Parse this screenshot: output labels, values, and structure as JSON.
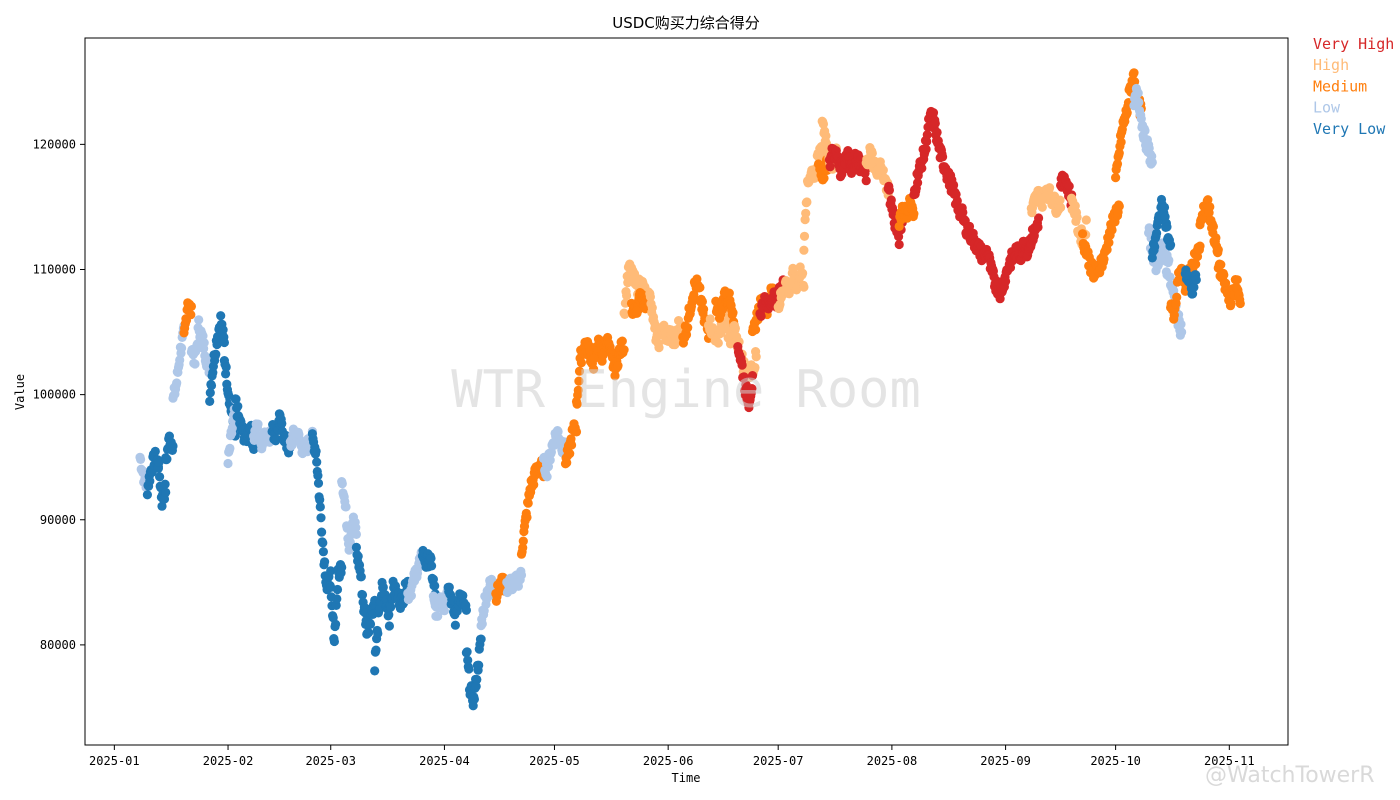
{
  "chart_data": {
    "type": "scatter",
    "title": "USDC购买力综合得分",
    "xlabel": "Time",
    "ylabel": "Value",
    "xlim": [
      "2024-12-24",
      "2025-11-17"
    ],
    "ylim": [
      72000,
      128500
    ],
    "x_ticks": [
      "2025-01",
      "2025-02",
      "2025-03",
      "2025-04",
      "2025-05",
      "2025-06",
      "2025-07",
      "2025-08",
      "2025-09",
      "2025-10",
      "2025-11"
    ],
    "y_ticks": [
      80000,
      90000,
      100000,
      110000,
      120000
    ],
    "legend_placement": "outside-right-top",
    "grid": false,
    "categories": [
      {
        "key": "very_high",
        "label": "Very High",
        "color": "#d62728"
      },
      {
        "key": "high",
        "label": "High",
        "color": "#ffbb78"
      },
      {
        "key": "medium",
        "label": "Medium",
        "color": "#ff7f0e"
      },
      {
        "key": "low",
        "label": "Low",
        "color": "#aec7e8"
      },
      {
        "key": "very_low",
        "label": "Very Low",
        "color": "#1f77b4"
      }
    ],
    "series": [
      {
        "start": "2025-01-08",
        "end": "2025-01-10",
        "category": "low",
        "values": [
          95000,
          93500,
          92500
        ]
      },
      {
        "start": "2025-01-10",
        "end": "2025-01-13",
        "category": "very_low",
        "values": [
          92500,
          94000,
          95000,
          94500
        ]
      },
      {
        "start": "2025-01-13",
        "end": "2025-01-15",
        "category": "very_low",
        "values": [
          94500,
          91500,
          92500
        ]
      },
      {
        "start": "2025-01-15",
        "end": "2025-01-17",
        "category": "very_low",
        "values": [
          94500,
          96500,
          96000
        ]
      },
      {
        "start": "2025-01-17",
        "end": "2025-01-20",
        "category": "low",
        "values": [
          99500,
          101000,
          103500,
          105000
        ]
      },
      {
        "start": "2025-01-20",
        "end": "2025-01-22",
        "category": "medium",
        "values": [
          104500,
          107500,
          106500
        ]
      },
      {
        "start": "2025-01-22",
        "end": "2025-01-27",
        "category": "low",
        "values": [
          104000,
          102500,
          105500,
          104500,
          103000,
          102000
        ]
      },
      {
        "start": "2025-01-27",
        "end": "2025-01-31",
        "category": "very_low",
        "values": [
          100000,
          102500,
          104500,
          106000,
          104000
        ]
      },
      {
        "start": "2025-01-31",
        "end": "2025-02-03",
        "category": "very_low",
        "values": [
          103000,
          100500,
          98500,
          96500
        ]
      },
      {
        "start": "2025-02-01",
        "end": "2025-02-03",
        "category": "low",
        "values": [
          94500,
          97000,
          99000
        ]
      },
      {
        "start": "2025-02-03",
        "end": "2025-02-08",
        "category": "very_low",
        "values": [
          99500,
          98000,
          97000,
          96500,
          97500,
          96000
        ]
      },
      {
        "start": "2025-02-08",
        "end": "2025-02-13",
        "category": "low",
        "values": [
          96500,
          97500,
          96000,
          97000,
          96500,
          97000
        ]
      },
      {
        "start": "2025-02-13",
        "end": "2025-02-18",
        "category": "very_low",
        "values": [
          97500,
          96500,
          98000,
          97000,
          96000,
          95500
        ]
      },
      {
        "start": "2025-02-18",
        "end": "2025-02-24",
        "category": "low",
        "values": [
          96000,
          97000,
          96500,
          95500,
          96000,
          96500
        ]
      },
      {
        "start": "2025-02-24",
        "end": "2025-03-01",
        "category": "very_low",
        "values": [
          96500,
          95500,
          91500,
          87500,
          84500,
          85500
        ]
      },
      {
        "start": "2025-03-01",
        "end": "2025-03-04",
        "category": "very_low",
        "values": [
          84000,
          80500,
          85500,
          86500
        ]
      },
      {
        "start": "2025-03-04",
        "end": "2025-03-08",
        "category": "low",
        "values": [
          93500,
          91000,
          88000,
          90000,
          89000
        ]
      },
      {
        "start": "2025-03-08",
        "end": "2025-03-13",
        "category": "very_low",
        "values": [
          87500,
          86000,
          83000,
          81000,
          82500,
          83500
        ]
      },
      {
        "start": "2025-03-13",
        "end": "2025-03-17",
        "category": "very_low",
        "values": [
          78500,
          82000,
          84500,
          83500,
          82000
        ]
      },
      {
        "start": "2025-03-17",
        "end": "2025-03-22",
        "category": "very_low",
        "values": [
          83000,
          84500,
          84000,
          83500,
          84000,
          85000
        ]
      },
      {
        "start": "2025-03-22",
        "end": "2025-03-26",
        "category": "low",
        "values": [
          84000,
          84500,
          85500,
          86500,
          87000
        ]
      },
      {
        "start": "2025-03-26",
        "end": "2025-03-30",
        "category": "very_low",
        "values": [
          87500,
          86500,
          87000,
          85000,
          83000
        ]
      },
      {
        "start": "2025-03-29",
        "end": "2025-04-02",
        "category": "low",
        "values": [
          83500,
          82500,
          84000,
          83000,
          84500
        ]
      },
      {
        "start": "2025-04-02",
        "end": "2025-04-07",
        "category": "very_low",
        "values": [
          85000,
          83500,
          82000,
          84000,
          83500,
          82500
        ]
      },
      {
        "start": "2025-04-07",
        "end": "2025-04-11",
        "category": "very_low",
        "values": [
          79500,
          76500,
          75500,
          78000,
          80500
        ]
      },
      {
        "start": "2025-04-11",
        "end": "2025-04-15",
        "category": "low",
        "values": [
          81500,
          83500,
          84500,
          85000,
          84000
        ]
      },
      {
        "start": "2025-04-15",
        "end": "2025-04-18",
        "category": "medium",
        "values": [
          84000,
          84500,
          85000,
          84500
        ]
      },
      {
        "start": "2025-04-18",
        "end": "2025-04-22",
        "category": "low",
        "values": [
          84500,
          85000,
          84800,
          85200,
          85500
        ]
      },
      {
        "start": "2025-04-22",
        "end": "2025-04-28",
        "category": "medium",
        "values": [
          87500,
          90000,
          92500,
          93500,
          94500,
          94000
        ]
      },
      {
        "start": "2025-04-28",
        "end": "2025-05-04",
        "category": "low",
        "values": [
          94500,
          94000,
          95500,
          96500,
          97000,
          96000,
          95500
        ]
      },
      {
        "start": "2025-05-04",
        "end": "2025-05-07",
        "category": "medium",
        "values": [
          94500,
          95500,
          97000,
          97500
        ]
      },
      {
        "start": "2025-05-07",
        "end": "2025-05-14",
        "category": "medium",
        "values": [
          99000,
          103000,
          104000,
          103500,
          102500,
          104000,
          103500
        ]
      },
      {
        "start": "2025-05-14",
        "end": "2025-05-20",
        "category": "medium",
        "values": [
          103000,
          104500,
          103000,
          102000,
          103500,
          104000
        ]
      },
      {
        "start": "2025-05-20",
        "end": "2025-05-27",
        "category": "high",
        "values": [
          106500,
          110000,
          109500,
          108500,
          109000,
          108000,
          107500
        ]
      },
      {
        "start": "2025-05-22",
        "end": "2025-05-26",
        "category": "medium",
        "values": [
          107000,
          106500,
          107500,
          108000,
          107000
        ]
      },
      {
        "start": "2025-05-27",
        "end": "2025-06-05",
        "category": "high",
        "values": [
          108500,
          105500,
          104000,
          105500,
          104500,
          105000,
          104000,
          105500,
          105000
        ]
      },
      {
        "start": "2025-06-05",
        "end": "2025-06-12",
        "category": "medium",
        "values": [
          104500,
          105500,
          107500,
          109000,
          108000,
          106000,
          105000
        ]
      },
      {
        "start": "2025-06-12",
        "end": "2025-06-18",
        "category": "high",
        "values": [
          106000,
          105000,
          104500,
          105500,
          106000,
          104000
        ]
      },
      {
        "start": "2025-06-14",
        "end": "2025-06-19",
        "category": "medium",
        "values": [
          107000,
          106500,
          108000,
          107500,
          105500
        ]
      },
      {
        "start": "2025-06-19",
        "end": "2025-06-25",
        "category": "high",
        "values": [
          105000,
          104000,
          102500,
          101500,
          102000,
          103000
        ]
      },
      {
        "start": "2025-06-20",
        "end": "2025-06-24",
        "category": "very_high",
        "values": [
          104000,
          102500,
          100500,
          99500,
          101000
        ]
      },
      {
        "start": "2025-06-24",
        "end": "2025-06-30",
        "category": "medium",
        "values": [
          104500,
          106000,
          107000,
          107500,
          107000,
          108000,
          108500
        ]
      },
      {
        "start": "2025-06-26",
        "end": "2025-07-03",
        "category": "very_high",
        "values": [
          106500,
          107500,
          107000,
          108000,
          107500,
          108500,
          109000
        ]
      },
      {
        "start": "2025-07-01",
        "end": "2025-07-08",
        "category": "high",
        "values": [
          107000,
          108000,
          109000,
          108500,
          109500,
          108500,
          110000,
          109000
        ]
      },
      {
        "start": "2025-07-08",
        "end": "2025-07-13",
        "category": "high",
        "values": [
          112000,
          116500,
          118000,
          117500,
          119000,
          120000
        ]
      },
      {
        "start": "2025-07-12",
        "end": "2025-07-15",
        "category": "medium",
        "values": [
          118500,
          117500,
          118000,
          119000
        ]
      },
      {
        "start": "2025-07-13",
        "end": "2025-07-17",
        "category": "high",
        "values": [
          122000,
          120500,
          119000,
          118500,
          119500
        ]
      },
      {
        "start": "2025-07-15",
        "end": "2025-07-25",
        "category": "very_high",
        "values": [
          118500,
          119500,
          119000,
          118000,
          118500,
          119500,
          118000,
          119000,
          118500,
          118000,
          117500
        ]
      },
      {
        "start": "2025-07-25",
        "end": "2025-07-31",
        "category": "high",
        "values": [
          118000,
          119500,
          118500,
          117500,
          118500,
          117000,
          116500
        ]
      },
      {
        "start": "2025-07-31",
        "end": "2025-08-04",
        "category": "very_high",
        "values": [
          116500,
          115000,
          113500,
          112500,
          114500
        ]
      },
      {
        "start": "2025-08-03",
        "end": "2025-08-07",
        "category": "medium",
        "values": [
          114000,
          115000,
          114500,
          115500,
          114000
        ]
      },
      {
        "start": "2025-08-07",
        "end": "2025-08-16",
        "category": "very_high",
        "values": [
          116000,
          117500,
          118500,
          119500,
          121500,
          122500,
          121000,
          119500,
          118500,
          118000
        ]
      },
      {
        "start": "2025-08-16",
        "end": "2025-08-31",
        "category": "very_high",
        "values": [
          117500,
          117000,
          116000,
          115000,
          114500,
          113500,
          113000,
          112500,
          112000,
          111500,
          111000,
          111500,
          110000,
          109000,
          108500,
          108000
        ]
      },
      {
        "start": "2025-08-31",
        "end": "2025-09-10",
        "category": "very_high",
        "values": [
          108500,
          109500,
          110500,
          111000,
          111500,
          111000,
          112000,
          111500,
          112500,
          113000,
          114000
        ]
      },
      {
        "start": "2025-09-08",
        "end": "2025-09-16",
        "category": "high",
        "values": [
          114500,
          115500,
          116000,
          115500,
          116500,
          116000,
          115500,
          115000,
          115500
        ]
      },
      {
        "start": "2025-09-16",
        "end": "2025-09-19",
        "category": "very_high",
        "values": [
          116500,
          117500,
          116500,
          115500
        ]
      },
      {
        "start": "2025-09-19",
        "end": "2025-09-23",
        "category": "high",
        "values": [
          115500,
          114500,
          113000,
          112500,
          113500
        ]
      },
      {
        "start": "2025-09-22",
        "end": "2025-10-02",
        "category": "medium",
        "values": [
          112500,
          111500,
          110500,
          109500,
          110000,
          110500,
          111000,
          112500,
          113500,
          114500,
          115000
        ]
      },
      {
        "start": "2025-10-01",
        "end": "2025-10-08",
        "category": "medium",
        "values": [
          117000,
          119500,
          121500,
          122500,
          124500,
          125500,
          123500,
          122500
        ]
      },
      {
        "start": "2025-10-06",
        "end": "2025-10-11",
        "category": "low",
        "values": [
          123000,
          124500,
          122000,
          120500,
          119500,
          118500
        ]
      },
      {
        "start": "2025-10-10",
        "end": "2025-10-15",
        "category": "low",
        "values": [
          113000,
          111500,
          110500,
          111000,
          112000,
          110000
        ]
      },
      {
        "start": "2025-10-11",
        "end": "2025-10-16",
        "category": "very_low",
        "values": [
          111000,
          112500,
          114500,
          115500,
          113000,
          111500
        ]
      },
      {
        "start": "2025-10-15",
        "end": "2025-10-19",
        "category": "low",
        "values": [
          111500,
          109000,
          107500,
          106000,
          105000
        ]
      },
      {
        "start": "2025-10-16",
        "end": "2025-10-24",
        "category": "medium",
        "values": [
          107500,
          106000,
          109000,
          110000,
          108500,
          109500,
          110500,
          111000,
          112000
        ]
      },
      {
        "start": "2025-10-20",
        "end": "2025-10-23",
        "category": "very_low",
        "values": [
          110000,
          109000,
          108500,
          109500
        ]
      },
      {
        "start": "2025-10-24",
        "end": "2025-10-29",
        "category": "medium",
        "values": [
          113500,
          114500,
          115500,
          114000,
          112500,
          111000
        ]
      },
      {
        "start": "2025-10-29",
        "end": "2025-11-04",
        "category": "medium",
        "values": [
          110500,
          109500,
          108500,
          107500,
          108000,
          109000,
          107000
        ]
      }
    ]
  },
  "watermark": "WTR Engine Room",
  "corner_watermark": "@WatchTowerR"
}
